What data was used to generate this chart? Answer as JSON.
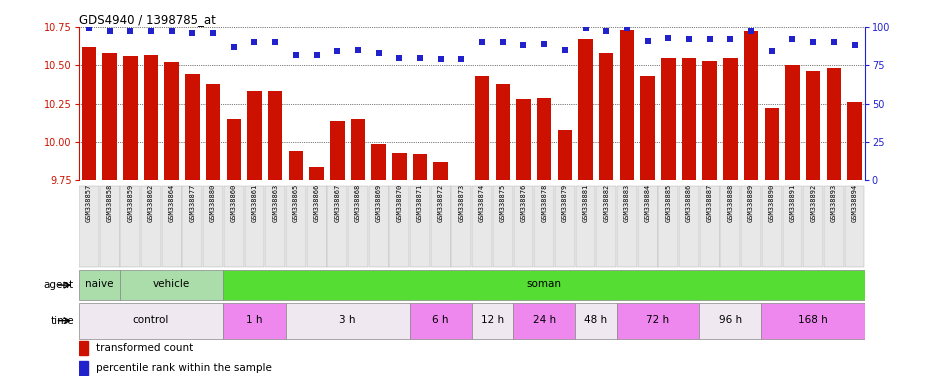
{
  "title": "GDS4940 / 1398785_at",
  "samples": [
    "GSM338857",
    "GSM338858",
    "GSM338859",
    "GSM338862",
    "GSM338864",
    "GSM338877",
    "GSM338880",
    "GSM338860",
    "GSM338861",
    "GSM338863",
    "GSM338865",
    "GSM338866",
    "GSM338867",
    "GSM338868",
    "GSM338869",
    "GSM338870",
    "GSM338871",
    "GSM338872",
    "GSM338873",
    "GSM338874",
    "GSM338875",
    "GSM338876",
    "GSM338878",
    "GSM338879",
    "GSM338881",
    "GSM338882",
    "GSM338883",
    "GSM338884",
    "GSM338885",
    "GSM338886",
    "GSM338887",
    "GSM338888",
    "GSM338889",
    "GSM338890",
    "GSM338891",
    "GSM338892",
    "GSM338893",
    "GSM338894"
  ],
  "bar_values": [
    10.62,
    10.58,
    10.56,
    10.57,
    10.52,
    10.44,
    10.38,
    10.15,
    10.33,
    10.33,
    9.94,
    9.84,
    10.14,
    10.15,
    9.99,
    9.93,
    9.92,
    9.87,
    9.74,
    10.43,
    10.38,
    10.28,
    10.29,
    10.08,
    10.67,
    10.58,
    10.73,
    10.43,
    10.55,
    10.55,
    10.53,
    10.55,
    10.72,
    10.22,
    10.5,
    10.46,
    10.48,
    10.26
  ],
  "percentile_values": [
    99,
    97,
    97,
    97,
    97,
    96,
    96,
    87,
    90,
    90,
    82,
    82,
    84,
    85,
    83,
    80,
    80,
    79,
    79,
    90,
    90,
    88,
    89,
    85,
    99,
    97,
    99,
    91,
    93,
    92,
    92,
    92,
    97,
    84,
    92,
    90,
    90,
    88
  ],
  "ylim_left": [
    9.75,
    10.75
  ],
  "ylim_right": [
    0,
    100
  ],
  "yticks_left": [
    9.75,
    10.0,
    10.25,
    10.5,
    10.75
  ],
  "yticks_right": [
    0,
    25,
    50,
    75,
    100
  ],
  "bar_color": "#cc1100",
  "dot_color": "#2222cc",
  "bar_baseline": 9.75,
  "agent_groups": [
    {
      "label": "naive",
      "start": 0,
      "end": 2,
      "color": "#aaddaa"
    },
    {
      "label": "vehicle",
      "start": 2,
      "end": 7,
      "color": "#aaddaa"
    },
    {
      "label": "soman",
      "start": 7,
      "end": 38,
      "color": "#55dd33"
    }
  ],
  "time_groups": [
    {
      "label": "control",
      "start": 0,
      "end": 7,
      "color": "#f0e8f0"
    },
    {
      "label": "1 h",
      "start": 7,
      "end": 10,
      "color": "#ee88ee"
    },
    {
      "label": "3 h",
      "start": 10,
      "end": 16,
      "color": "#f0e8f0"
    },
    {
      "label": "6 h",
      "start": 16,
      "end": 19,
      "color": "#ee88ee"
    },
    {
      "label": "12 h",
      "start": 19,
      "end": 21,
      "color": "#f0e8f0"
    },
    {
      "label": "24 h",
      "start": 21,
      "end": 24,
      "color": "#ee88ee"
    },
    {
      "label": "48 h",
      "start": 24,
      "end": 26,
      "color": "#f0e8f0"
    },
    {
      "label": "72 h",
      "start": 26,
      "end": 30,
      "color": "#ee88ee"
    },
    {
      "label": "96 h",
      "start": 30,
      "end": 33,
      "color": "#f0e8f0"
    },
    {
      "label": "168 h",
      "start": 33,
      "end": 38,
      "color": "#ee88ee"
    }
  ]
}
